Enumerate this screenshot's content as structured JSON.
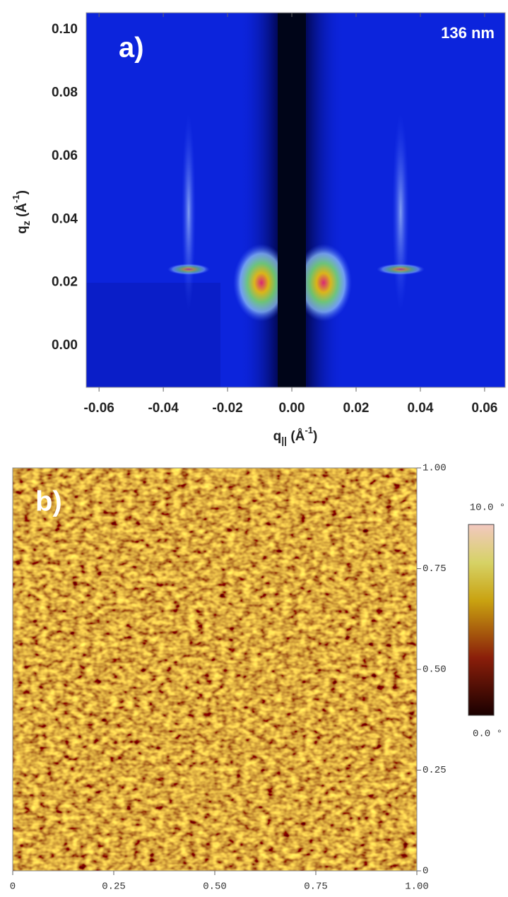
{
  "chart_data": [
    {
      "type": "heatmap",
      "annotations": [
        "a)",
        "136 nm"
      ],
      "xlabel": [
        "q",
        "||",
        " (Å",
        "-1",
        ")"
      ],
      "ylabel": [
        "q",
        "z",
        " (Å",
        "-1",
        ")"
      ],
      "xlim": [
        -0.064,
        0.0664
      ],
      "ylim": [
        -0.0132,
        0.1054
      ],
      "xticks": [
        -0.06,
        -0.04,
        -0.02,
        {
          "value": 0,
          "label": "0.00"
        },
        0.02,
        0.04,
        0.06
      ],
      "yticks": [
        {
          "value": 0,
          "label": "0.00"
        },
        0.02,
        0.04,
        0.06,
        0.08,
        {
          "value": 0.1,
          "label": "0.10"
        }
      ]
    },
    {
      "type": "image",
      "annotations": [
        "b)"
      ],
      "xlim": [
        0,
        1
      ],
      "ylim": [
        0,
        1
      ],
      "xticks": [
        0,
        0.25,
        {
          "value": 0.5,
          "label": "0.50"
        },
        0.75,
        {
          "value": 1,
          "label": "1.00"
        }
      ],
      "yticks": [
        0,
        0.25,
        {
          "value": 0.5,
          "label": "0.50"
        },
        0.75,
        {
          "value": 1,
          "label": "1.00"
        }
      ],
      "colorbar": {
        "lim": [
          0,
          10
        ],
        "ticks": [
          {
            "value": 0,
            "label": "0.0 °"
          },
          {
            "value": 10,
            "label": "10.0 °"
          }
        ]
      }
    }
  ]
}
